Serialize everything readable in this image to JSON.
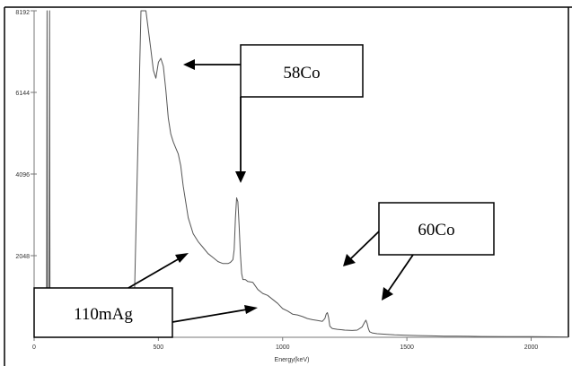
{
  "chart_data": {
    "type": "line",
    "title": "",
    "xlabel": "Energy(keV)",
    "ylabel": "",
    "xlim": [
      0,
      2150
    ],
    "ylim": [
      0,
      8192
    ],
    "x_ticks": [
      {
        "value": 0,
        "label": "0"
      },
      {
        "value": 500,
        "label": "500"
      },
      {
        "value": 1000,
        "label": "1000"
      },
      {
        "value": 1500,
        "label": "1500"
      },
      {
        "value": 2000,
        "label": "2000"
      }
    ],
    "y_ticks": [
      {
        "value": 2048,
        "label": "2048"
      },
      {
        "value": 4096,
        "label": "4096"
      },
      {
        "value": 6144,
        "label": "6144"
      },
      {
        "value": 8192,
        "label": "8192"
      }
    ],
    "grid": false,
    "series": [
      {
        "color": "#555555",
        "x": [
          50,
          52,
          54,
          60,
          62,
          64,
          75,
          90,
          100,
          120,
          140,
          160,
          180,
          200,
          250,
          300,
          350,
          400,
          430,
          450,
          470,
          480,
          490,
          500,
          510,
          520,
          530,
          540,
          550,
          560,
          570,
          580,
          590,
          600,
          610,
          620,
          640,
          660,
          680,
          700,
          720,
          740,
          760,
          780,
          790,
          800,
          805,
          810,
          815,
          820,
          825,
          830,
          835,
          840,
          850,
          860,
          880,
          900,
          920,
          940,
          960,
          980,
          1000,
          1020,
          1040,
          1060,
          1080,
          1100,
          1120,
          1140,
          1160,
          1170,
          1175,
          1180,
          1185,
          1190,
          1200,
          1220,
          1250,
          1280,
          1300,
          1320,
          1330,
          1335,
          1340,
          1345,
          1350,
          1360,
          1380,
          1400,
          1450,
          1500,
          1550,
          1600,
          1650,
          1700,
          1750,
          1800,
          1900,
          2000,
          2100,
          2150
        ],
        "y": [
          0,
          8192,
          0,
          0,
          8192,
          0,
          0,
          0,
          0,
          0,
          0,
          0,
          0,
          0,
          0,
          0,
          0,
          0,
          9200,
          8300,
          7200,
          6700,
          6500,
          6900,
          7000,
          6800,
          6200,
          5500,
          5100,
          4900,
          4750,
          4600,
          4300,
          3800,
          3400,
          3000,
          2600,
          2400,
          2250,
          2100,
          2000,
          1900,
          1850,
          1850,
          1880,
          1950,
          2200,
          3000,
          3500,
          3400,
          2800,
          2100,
          1600,
          1450,
          1450,
          1400,
          1380,
          1200,
          1100,
          1050,
          950,
          850,
          720,
          660,
          580,
          560,
          520,
          470,
          440,
          420,
          400,
          470,
          580,
          620,
          500,
          280,
          220,
          200,
          180,
          170,
          180,
          260,
          380,
          430,
          350,
          220,
          140,
          110,
          90,
          80,
          60,
          50,
          42,
          36,
          30,
          28,
          25,
          20,
          17,
          15,
          12,
          10
        ]
      }
    ],
    "annotations": [
      {
        "label": "58Co",
        "targets": [
          {
            "x": 515,
            "y": 7000
          },
          {
            "x": 811,
            "y": 3000
          }
        ]
      },
      {
        "label": "60Co",
        "targets": [
          {
            "x": 1173,
            "y": 470
          },
          {
            "x": 1332,
            "y": 430
          }
        ]
      },
      {
        "label": "110mAg",
        "targets": [
          {
            "x": 658,
            "y": 2450
          },
          {
            "x": 885,
            "y": 1420
          }
        ]
      }
    ]
  }
}
